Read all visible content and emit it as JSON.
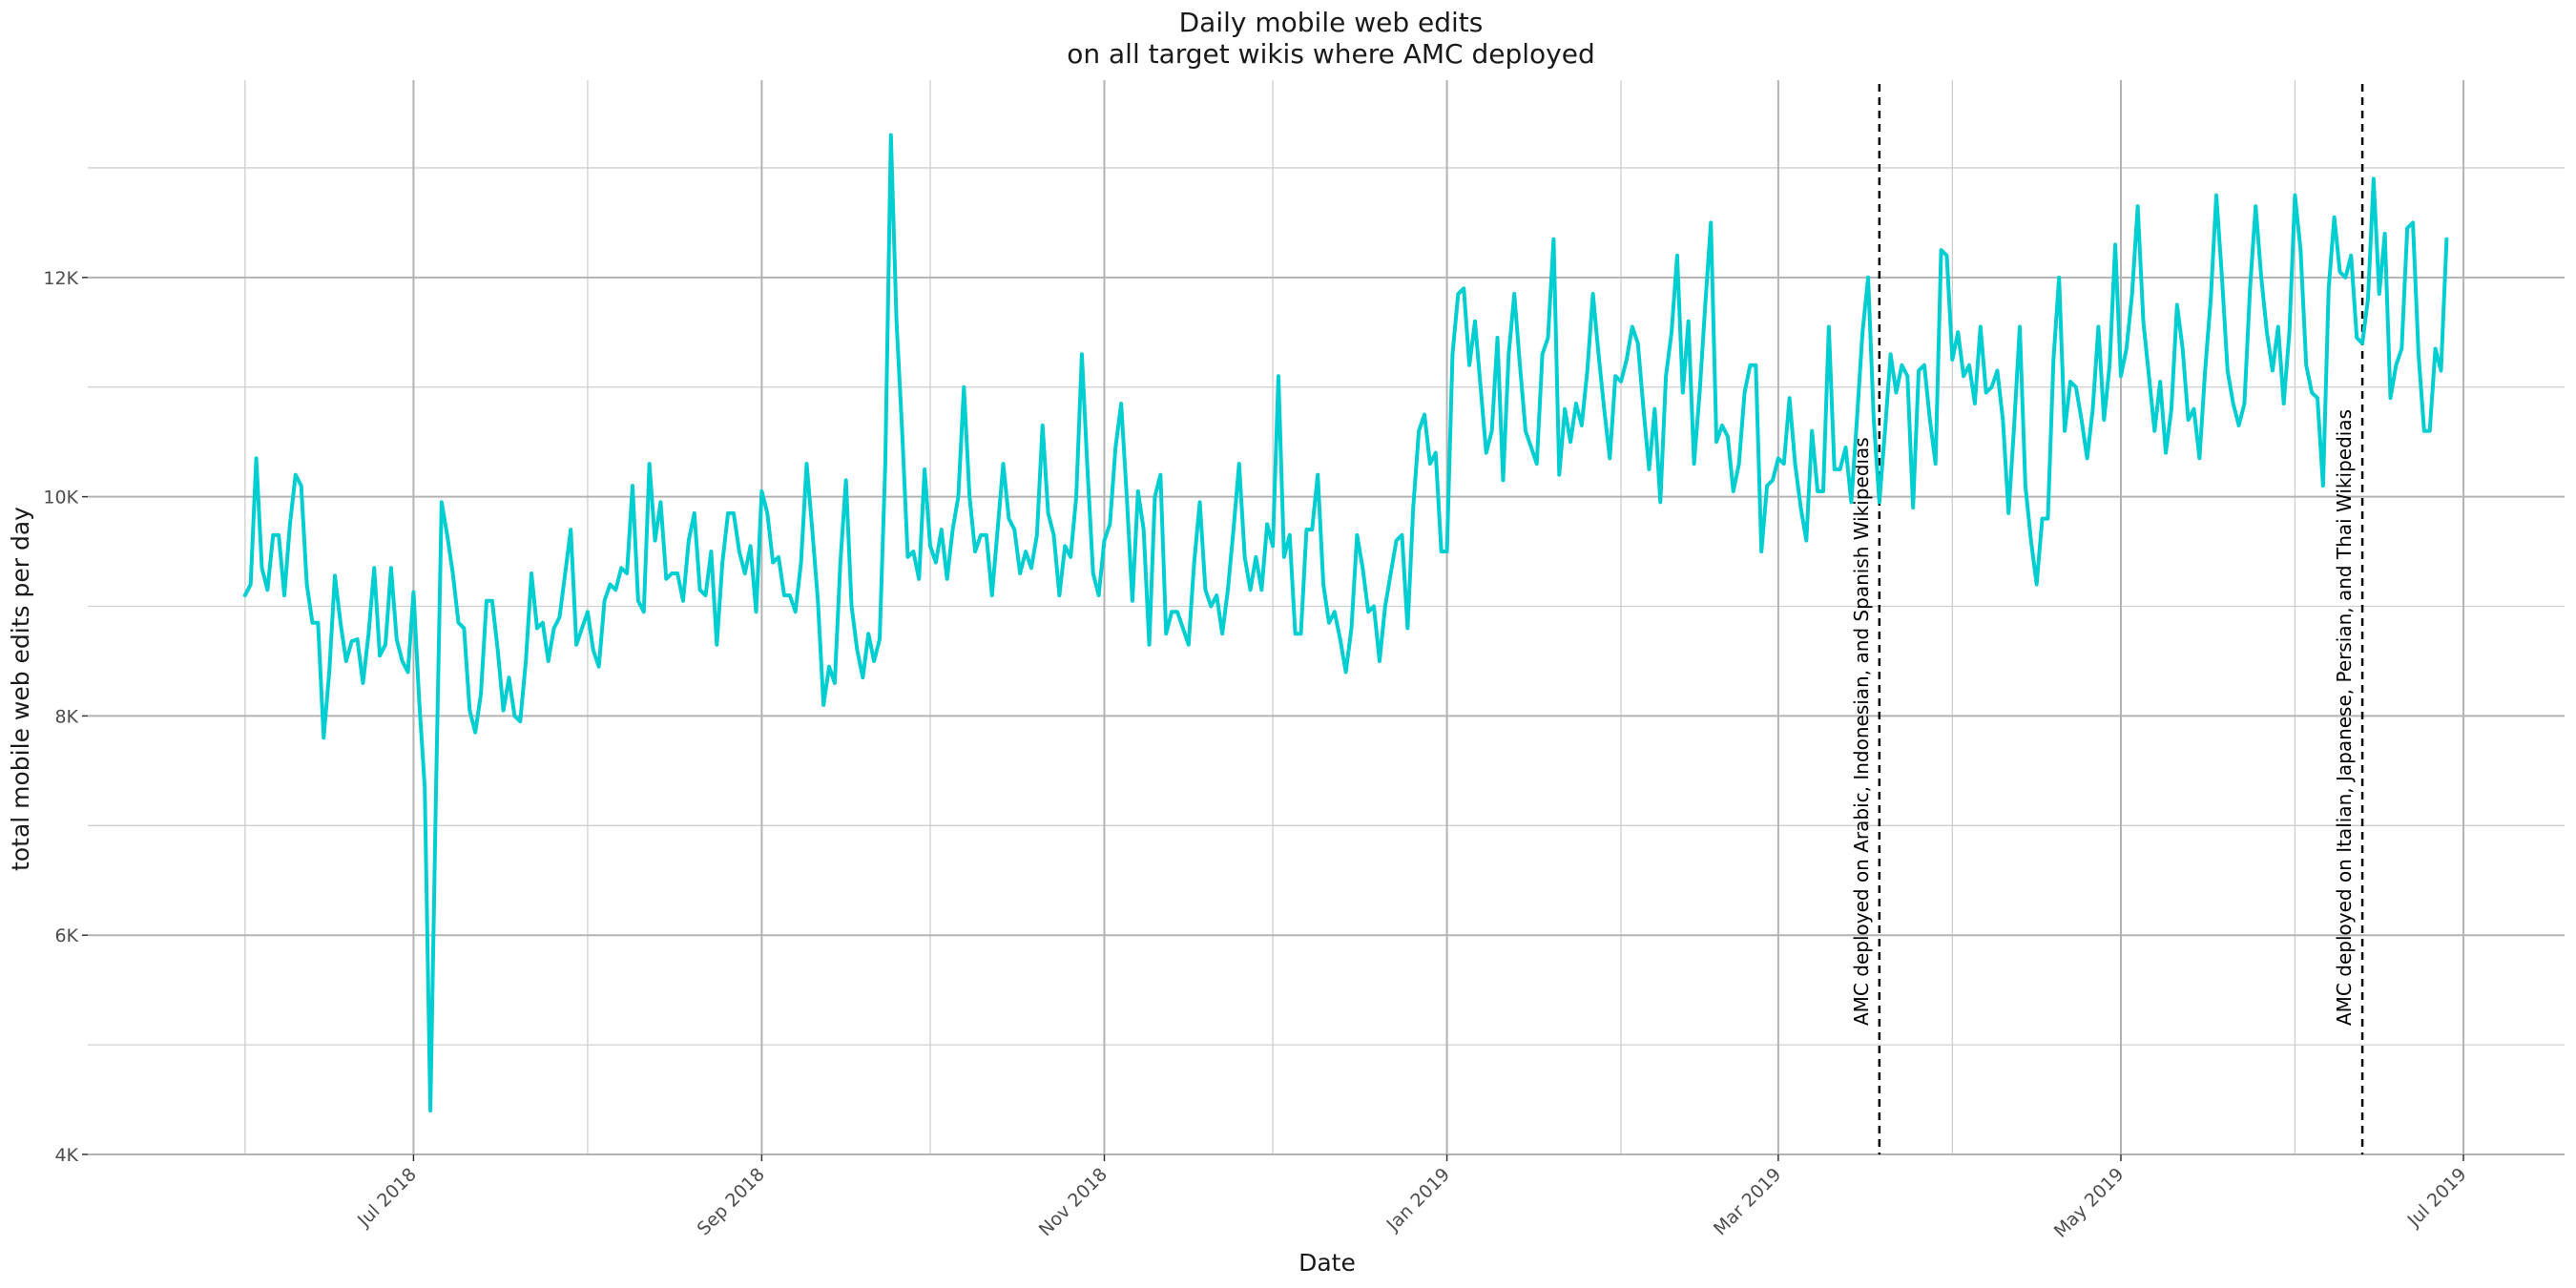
{
  "chart_data": {
    "type": "line",
    "title": "Daily mobile web edits",
    "subtitle": "on all target wikis where AMC deployed",
    "xlabel": "Date",
    "ylabel": "total mobile web edits per day",
    "x_range": [
      "2018-05-04",
      "2019-07-19"
    ],
    "ylim": [
      4000,
      13800
    ],
    "y_ticks": [
      {
        "value": 4000,
        "label": "4K"
      },
      {
        "value": 6000,
        "label": "6K"
      },
      {
        "value": 8000,
        "label": "8K"
      },
      {
        "value": 10000,
        "label": "10K"
      },
      {
        "value": 12000,
        "label": "12K"
      }
    ],
    "y_minor_ticks": [
      5000,
      7000,
      9000,
      11000,
      13000
    ],
    "x_ticks": [
      {
        "date": "2018-07-01",
        "label": "Jul 2018"
      },
      {
        "date": "2018-09-01",
        "label": "Sep 2018"
      },
      {
        "date": "2018-11-01",
        "label": "Nov 2018"
      },
      {
        "date": "2019-01-01",
        "label": "Jan 2019"
      },
      {
        "date": "2019-03-01",
        "label": "Mar 2019"
      },
      {
        "date": "2019-05-01",
        "label": "May 2019"
      },
      {
        "date": "2019-07-01",
        "label": "Jul 2019"
      }
    ],
    "x_minor_ticks": [
      "2018-06-01",
      "2018-08-01",
      "2018-10-01",
      "2018-12-01",
      "2019-02-01",
      "2019-04-01",
      "2019-06-01"
    ],
    "grid": true,
    "line_color": "#00ced1",
    "series": [
      {
        "start_date": "2018-06-01",
        "values": [
          9100,
          9200,
          10350,
          9350,
          9150,
          9650,
          9650,
          9100,
          9750,
          10200,
          10100,
          9200,
          8850,
          8850,
          7800,
          8400,
          9280,
          8850,
          8500,
          8680,
          8700,
          8300,
          8750,
          9350,
          8550,
          8650,
          9350,
          8700,
          8500,
          8400,
          9130,
          8150,
          7350,
          4400,
          7300,
          9950,
          9650,
          9300,
          8850,
          8800,
          8050,
          7850,
          8200,
          9050,
          9050,
          8600,
          8050,
          8350,
          8000,
          7950,
          8500,
          9300,
          8800,
          8850,
          8500,
          8800,
          8900,
          9300,
          9700,
          8650,
          8800,
          8950,
          8600,
          8450,
          9050,
          9200,
          9150,
          9350,
          9300,
          10100,
          9050,
          8950,
          10300,
          9600,
          9950,
          9250,
          9300,
          9300,
          9050,
          9600,
          9850,
          9150,
          9100,
          9500,
          8650,
          9400,
          9850,
          9850,
          9500,
          9300,
          9550,
          8950,
          10050,
          9850,
          9400,
          9450,
          9100,
          9100,
          8950,
          9400,
          10300,
          9700,
          9050,
          8100,
          8450,
          8300,
          9400,
          10150,
          9000,
          8600,
          8350,
          8750,
          8500,
          8700,
          10300,
          13300,
          11600,
          10600,
          9450,
          9500,
          9250,
          10250,
          9550,
          9400,
          9700,
          9250,
          9700,
          10000,
          11000,
          10000,
          9500,
          9650,
          9650,
          9100,
          9700,
          10300,
          9800,
          9700,
          9300,
          9500,
          9350,
          9650,
          10650,
          9850,
          9650,
          9100,
          9550,
          9450,
          10000,
          11300,
          10250,
          9300,
          9100,
          9600,
          9750,
          10450,
          10850,
          10000,
          9050,
          10050,
          9700,
          8650,
          10000,
          10200,
          8750,
          8950,
          8950,
          8800,
          8650,
          9400,
          9950,
          9150,
          9000,
          9100,
          8750,
          9150,
          9700,
          10300,
          9450,
          9150,
          9450,
          9150,
          9750,
          9550,
          11100,
          9450,
          9650,
          8750,
          8750,
          9700,
          9700,
          10200,
          9200,
          8850,
          8950,
          8700,
          8400,
          8800,
          9650,
          9350,
          8950,
          9000,
          8500,
          9000,
          9300,
          9600,
          9650,
          8800,
          9900,
          10600,
          10750,
          10300,
          10400,
          9500,
          9500,
          11300,
          11850,
          11900,
          11200,
          11600,
          11000,
          10400,
          10600,
          11450,
          10150,
          11300,
          11850,
          11200,
          10600,
          10450,
          10300,
          11300,
          11450,
          12350,
          10200,
          10800,
          10500,
          10850,
          10650,
          11150,
          11850,
          11300,
          10800,
          10350,
          11100,
          11050,
          11250,
          11550,
          11400,
          10800,
          10250,
          10800,
          9950,
          11100,
          11500,
          12200,
          10950,
          11600,
          10300,
          10950,
          11750,
          12500,
          10500,
          10650,
          10550,
          10050,
          10300,
          10950,
          11200,
          11200,
          9500,
          10100,
          10150,
          10350,
          10300,
          10900,
          10300,
          9900,
          9600,
          10600,
          10050,
          10050,
          11550,
          10250,
          10250,
          10450,
          9950,
          10700,
          11500,
          12000,
          10700,
          9950,
          10600,
          11300,
          10950,
          11200,
          11100,
          9900,
          11150,
          11200,
          10700,
          10300,
          12250,
          12200,
          11250,
          11500,
          11100,
          11200,
          10850,
          11550,
          10950,
          11000,
          11150,
          10700,
          9850,
          10650,
          11550,
          10100,
          9600,
          9200,
          9800,
          9800,
          11250,
          12000,
          10600,
          11050,
          11000,
          10700,
          10350,
          10800,
          11550,
          10700,
          11200,
          12300,
          11100,
          11350,
          11850,
          12650,
          11600,
          11100,
          10600,
          11050,
          10400,
          10800,
          11750,
          11350,
          10700,
          10800,
          10350,
          11150,
          11800,
          12750,
          12000,
          11150,
          10850,
          10650,
          10850,
          11900,
          12650,
          12000,
          11500,
          11150,
          11550,
          10850,
          11500,
          12750,
          12250,
          11200,
          10950,
          10900,
          10100,
          11900,
          12550,
          12050,
          12000,
          12200,
          11450,
          11400,
          11800,
          12900,
          11850,
          12400,
          10900,
          11200,
          11350,
          12450,
          12500,
          11300,
          10600,
          10600,
          11350,
          11150,
          12350
        ]
      }
    ],
    "annotations": [
      {
        "date": "2019-03-19",
        "label": "AMC deployed on Arabic, Indonesian, and Spanish Wikipedias",
        "line_style": "dashed"
      },
      {
        "date": "2019-06-13",
        "label": "AMC deployed on Italian, Japanese, Persian, and Thai Wikipedias",
        "line_style": "dashed"
      }
    ]
  }
}
